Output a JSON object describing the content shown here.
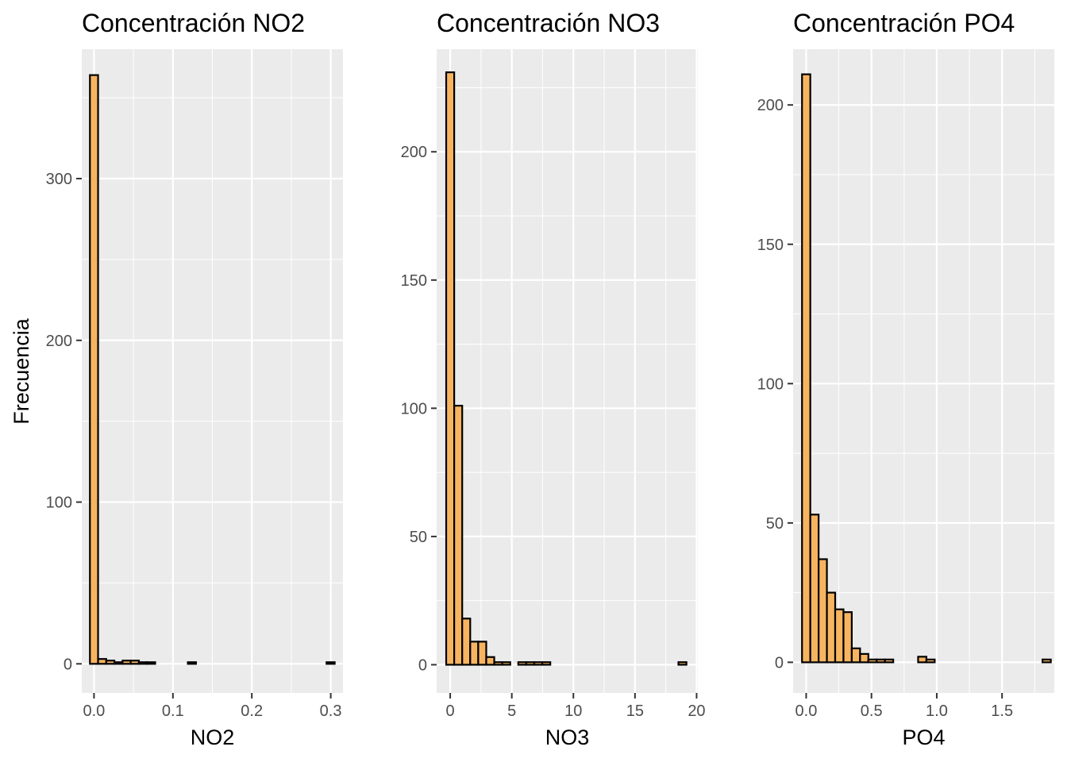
{
  "colors": {
    "panel_background": "#ebebeb",
    "grid_major": "#ffffff",
    "bar_fill": "#f6b461",
    "bar_outline": "#000000",
    "tick": "#333333"
  },
  "shared_ylabel": "Frecuencia",
  "chart_data": [
    {
      "type": "bar",
      "title": "Concentración NO2",
      "xlabel": "NO2",
      "ylabel": "Frecuencia",
      "xlim": [
        -0.0155,
        0.3155
      ],
      "ylim": [
        -18,
        380
      ],
      "xticks": [
        0.0,
        0.1,
        0.2,
        0.3
      ],
      "xtick_labels": [
        "0.0",
        "0.1",
        "0.2",
        "0.3"
      ],
      "yticks": [
        0,
        100,
        200,
        300
      ],
      "ytick_labels": [
        "0",
        "100",
        "200",
        "300"
      ],
      "grid": true,
      "bin_width": 0.01034,
      "bin_start": -0.00517,
      "values": [
        364,
        3,
        2,
        1,
        2,
        2,
        1,
        1,
        0,
        0,
        0,
        0,
        1,
        0,
        0,
        0,
        0,
        0,
        0,
        0,
        0,
        0,
        0,
        0,
        0,
        0,
        0,
        0,
        0,
        1
      ]
    },
    {
      "type": "bar",
      "title": "Concentración NO3",
      "xlabel": "NO3",
      "ylabel": "",
      "xlim": [
        -1.1,
        20.1
      ],
      "ylim": [
        -11,
        240
      ],
      "xticks": [
        0,
        5,
        10,
        15,
        20
      ],
      "xtick_labels": [
        "0",
        "5",
        "10",
        "15",
        "20"
      ],
      "yticks": [
        0,
        50,
        100,
        150,
        200
      ],
      "ytick_labels": [
        "0",
        "50",
        "100",
        "150",
        "200"
      ],
      "grid": true,
      "bin_width": 0.65,
      "bin_start": -0.325,
      "values": [
        231,
        101,
        18,
        9,
        9,
        3,
        1,
        1,
        0,
        1,
        1,
        1,
        1,
        0,
        0,
        0,
        0,
        0,
        0,
        0,
        0,
        0,
        0,
        0,
        0,
        0,
        0,
        0,
        0,
        1
      ]
    },
    {
      "type": "bar",
      "title": "Concentración PO4",
      "xlabel": "PO4",
      "ylabel": "",
      "xlim": [
        -0.1,
        1.9
      ],
      "ylim": [
        -11,
        220
      ],
      "xticks": [
        0.0,
        0.5,
        1.0,
        1.5
      ],
      "xtick_labels": [
        "0.0",
        "0.5",
        "1.0",
        "1.5"
      ],
      "yticks": [
        0,
        50,
        100,
        150,
        200
      ],
      "ytick_labels": [
        "0",
        "50",
        "100",
        "150",
        "200"
      ],
      "grid": true,
      "bin_width": 0.0635,
      "bin_start": -0.03175,
      "values": [
        211,
        53,
        37,
        25,
        19,
        18,
        5,
        3,
        1,
        1,
        1,
        0,
        0,
        0,
        2,
        1,
        0,
        0,
        0,
        0,
        0,
        0,
        0,
        0,
        0,
        0,
        0,
        0,
        0,
        1
      ]
    }
  ]
}
